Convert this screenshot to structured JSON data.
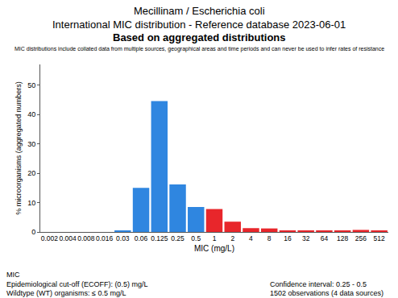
{
  "chart_data": {
    "type": "bar",
    "title": [
      "Mecillinam / Escherichia coli",
      "International MIC distribution - Reference database 2023-06-01"
    ],
    "subtitle": "Based on aggregated distributions",
    "note": "MIC distributions include collated data from multiple sources, geographical areas and time periods and can never be used to infer rates of resistance",
    "x_label": "MIC (mg/L)",
    "y_label": "% microorganisms (aggregated numbers)",
    "categories": [
      "0.002",
      "0.004",
      "0.008",
      "0.016",
      "0.03",
      "0.06",
      "0.125",
      "0.25",
      "0.5",
      "1",
      "2",
      "4",
      "8",
      "16",
      "32",
      "64",
      "128",
      "256",
      "512"
    ],
    "values": [
      0,
      0,
      0,
      0,
      0.3,
      15,
      44.5,
      16.2,
      8.5,
      7.8,
      3.5,
      1.3,
      1.2,
      0.5,
      0.5,
      0.5,
      0.5,
      0.7,
      0.5
    ],
    "colors": [
      "#2f86e0",
      "#2f86e0",
      "#2f86e0",
      "#2f86e0",
      "#2f86e0",
      "#2f86e0",
      "#2f86e0",
      "#2f86e0",
      "#2f86e0",
      "#e8262b",
      "#e8262b",
      "#e8262b",
      "#e8262b",
      "#e8262b",
      "#e8262b",
      "#e8262b",
      "#e8262b",
      "#e8262b",
      "#e8262b"
    ],
    "ylim": [
      0,
      57
    ],
    "yticks": [
      0,
      10,
      20,
      30,
      40,
      50
    ],
    "grid": false,
    "footnotes": {
      "left": [
        "MIC",
        "Epidemiological cut-off (ECOFF): (0.5) mg/L",
        "Wildtype (WT) organisms: ≤ 0.5 mg/L"
      ],
      "right": [
        "Confidence interval: 0.25 - 0.5",
        "1502 observations (4 data sources)"
      ]
    }
  }
}
